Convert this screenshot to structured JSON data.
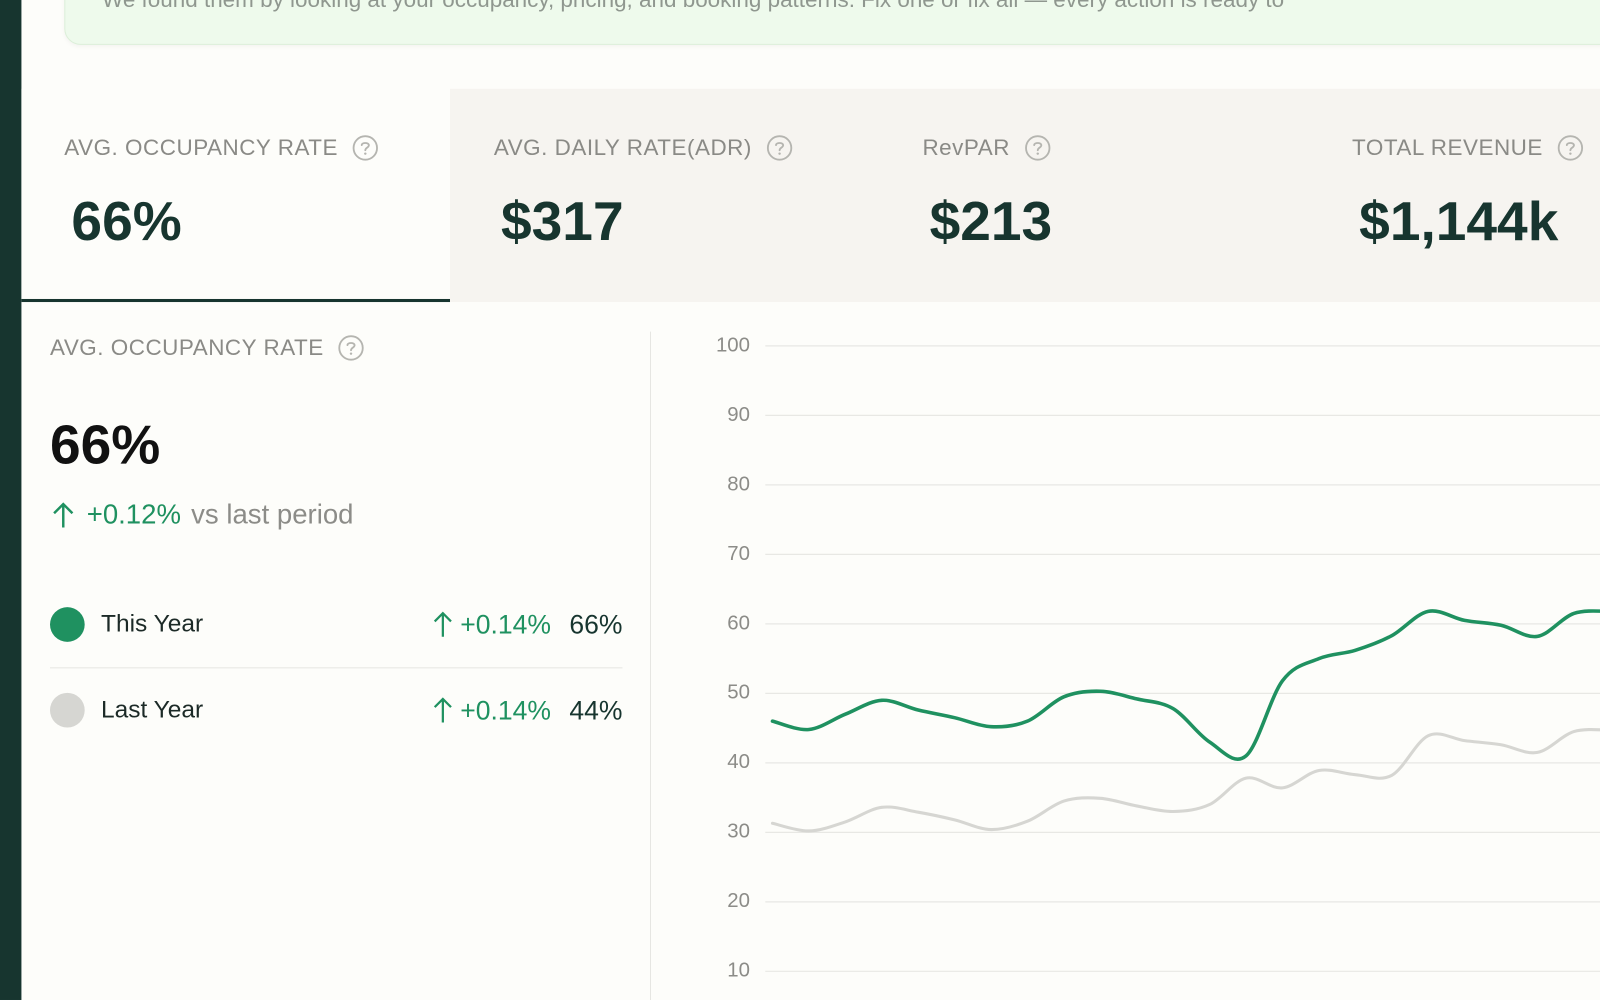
{
  "banner": {
    "text": "We found them by looking at your occupancy, pricing, and booking patterns. Fix one or fix all — every action is ready to"
  },
  "kpis": [
    {
      "label": "AVG. OCCUPANCY RATE",
      "value": "66%"
    },
    {
      "label": "AVG. DAILY RATE(ADR)",
      "value": "$317"
    },
    {
      "label": "RevPAR",
      "value": "$213"
    },
    {
      "label": "TOTAL REVENUE",
      "value": "$1,144k"
    }
  ],
  "detail": {
    "label": "AVG. OCCUPANCY RATE",
    "value": "66%",
    "change": "+0.12%",
    "change_caption": "vs last period",
    "legend": [
      {
        "change": "+0.14%",
        "value": "66%"
      },
      {
        "change": "+0.14%",
        "value": "44%"
      }
    ]
  },
  "chart_data": {
    "type": "line",
    "categories": [
      null,
      null,
      null,
      null,
      null,
      null,
      null,
      null,
      null,
      null,
      null,
      null,
      null,
      null,
      null,
      null,
      null,
      null,
      null,
      null,
      null,
      null,
      null,
      null
    ],
    "series": [
      {
        "name": "This Year",
        "color": "#1f9160",
        "values": [
          46,
          44.8,
          47,
          49,
          47.6,
          46.5,
          45.2,
          46,
          49.5,
          50.3,
          49.2,
          47.8,
          43,
          41,
          51.8,
          55,
          56.2,
          58.3,
          61.8,
          60.5,
          59.8,
          58.2,
          61.5,
          61.8
        ]
      },
      {
        "name": "Last Year",
        "color": "#d6d6d2",
        "values": [
          31.3,
          30.2,
          31.5,
          33.6,
          32.9,
          31.8,
          30.4,
          31.6,
          34.5,
          34.9,
          33.8,
          33,
          34,
          37.8,
          36.4,
          38.9,
          38.3,
          38.2,
          43.9,
          43.2,
          42.6,
          41.5,
          44.5,
          44.7
        ]
      }
    ],
    "ylim": [
      0,
      100
    ],
    "yticks": [
      10,
      20,
      30,
      40,
      50,
      60,
      70,
      80,
      90,
      100
    ],
    "grid": true
  }
}
